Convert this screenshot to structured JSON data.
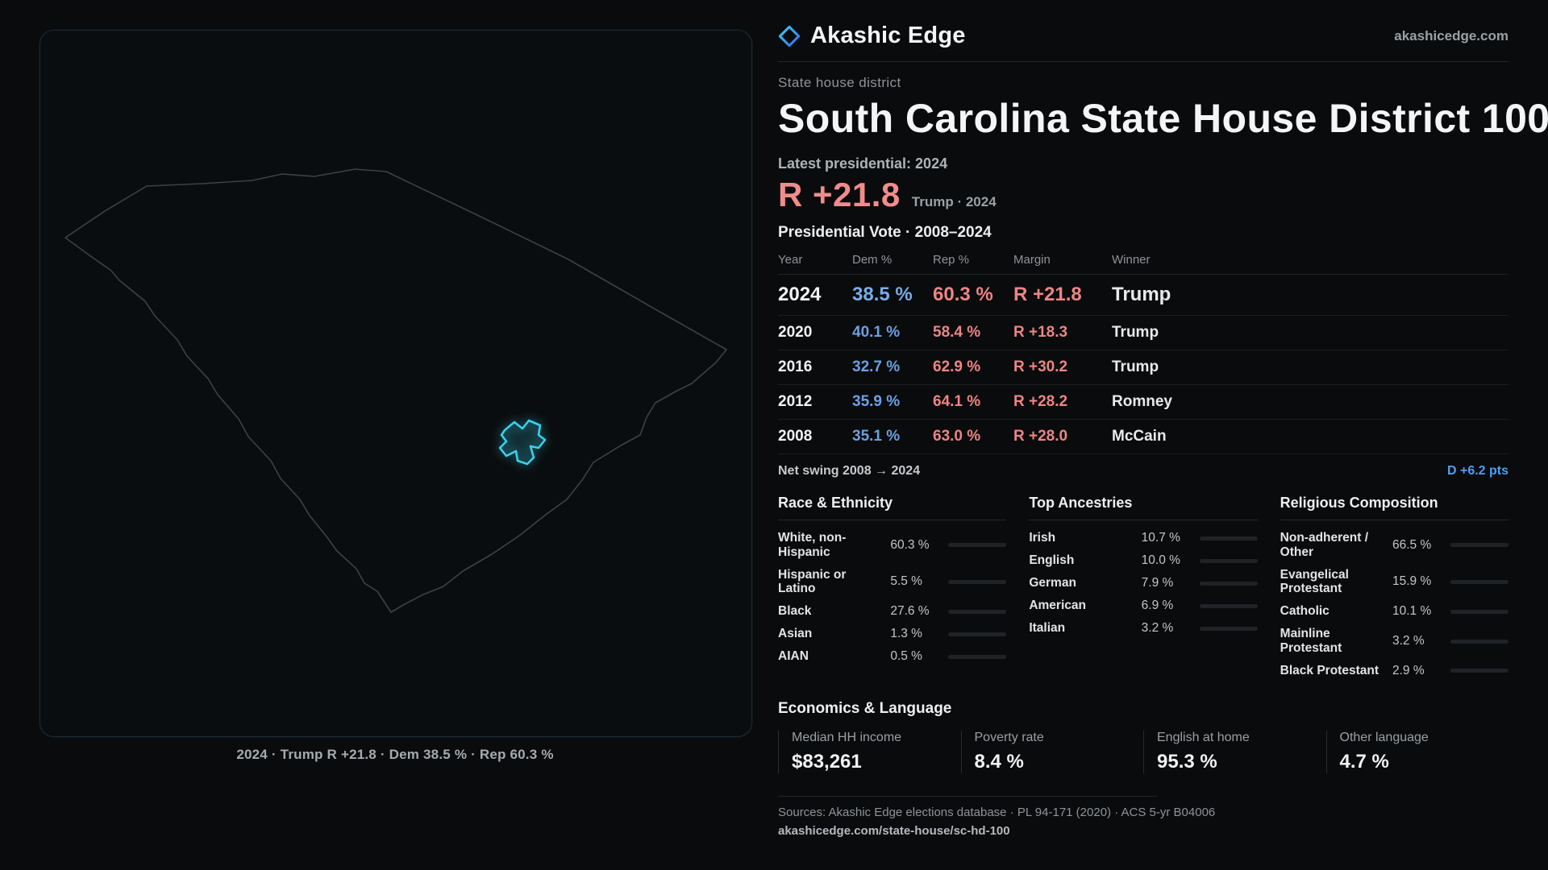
{
  "brand": {
    "name": "Akashic Edge",
    "domain": "akashicedge.com",
    "accent_cyan": "#3ad1ec",
    "accent_blue": "#2f6ef0"
  },
  "map": {
    "caption": "2024 · Trump R +21.8 · Dem 38.5 % · Rep 60.3 %"
  },
  "header": {
    "kicker": "State house district",
    "title": "South Carolina State House District 100",
    "latest_label": "Latest presidential: 2024",
    "margin_value": "R +21.8",
    "margin_sub": "Trump · 2024",
    "rep_color": "#f08c8c",
    "dem_color": "#6ba1e2"
  },
  "table": {
    "title": "Presidential Vote · 2008–2024",
    "columns": [
      "Year",
      "Dem %",
      "Rep %",
      "Margin",
      "Winner"
    ],
    "rows": [
      {
        "year": "2024",
        "dem": "38.5 %",
        "rep": "60.3 %",
        "margin": "R +21.8",
        "winner": "Trump"
      },
      {
        "year": "2020",
        "dem": "40.1 %",
        "rep": "58.4 %",
        "margin": "R +18.3",
        "winner": "Trump"
      },
      {
        "year": "2016",
        "dem": "32.7 %",
        "rep": "62.9 %",
        "margin": "R +30.2",
        "winner": "Trump"
      },
      {
        "year": "2012",
        "dem": "35.9 %",
        "rep": "64.1 %",
        "margin": "R +28.2",
        "winner": "Romney"
      },
      {
        "year": "2008",
        "dem": "35.1 %",
        "rep": "63.0 %",
        "margin": "R +28.0",
        "winner": "McCain"
      }
    ],
    "swing_label": "Net swing 2008 → 2024",
    "swing_value": "D +6.2 pts",
    "swing_color": "#4f9ef2"
  },
  "demographics": {
    "race": {
      "title": "Race & Ethnicity",
      "items": [
        {
          "label": "White, non-Hispanic",
          "value": "60.3 %",
          "pct": 60.3,
          "color": "#b9bec3"
        },
        {
          "label": "Hispanic or Latino",
          "value": "5.5 %",
          "pct": 5.5,
          "color": "#e0a33e"
        },
        {
          "label": "Black",
          "value": "27.6 %",
          "pct": 27.6,
          "color": "#8b7fe8"
        },
        {
          "label": "Asian",
          "value": "1.3 %",
          "pct": 1.3,
          "color": "#6fbf93"
        },
        {
          "label": "AIAN",
          "value": "0.5 %",
          "pct": 0.5,
          "color": "#b9bec3"
        }
      ]
    },
    "ancestry": {
      "title": "Top Ancestries",
      "items": [
        {
          "label": "Irish",
          "value": "10.7 %",
          "pct": 10.7,
          "color": "#b9bec3"
        },
        {
          "label": "English",
          "value": "10.0 %",
          "pct": 10.0,
          "color": "#b9bec3"
        },
        {
          "label": "German",
          "value": "7.9 %",
          "pct": 7.9,
          "color": "#b9bec3"
        },
        {
          "label": "American",
          "value": "6.9 %",
          "pct": 6.9,
          "color": "#b9bec3"
        },
        {
          "label": "Italian",
          "value": "3.2 %",
          "pct": 3.2,
          "color": "#b9bec3"
        }
      ]
    },
    "religion": {
      "title": "Religious Composition",
      "items": [
        {
          "label": "Non-adherent / Other",
          "value": "66.5 %",
          "pct": 66.5,
          "color": "#b9bec3"
        },
        {
          "label": "Evangelical Protestant",
          "value": "15.9 %",
          "pct": 15.9,
          "color": "#e07a7a"
        },
        {
          "label": "Catholic",
          "value": "10.1 %",
          "pct": 10.1,
          "color": "#e0b23e"
        },
        {
          "label": "Mainline Protestant",
          "value": "3.2 %",
          "pct": 3.2,
          "color": "#6ba1e2"
        },
        {
          "label": "Black Protestant",
          "value": "2.9 %",
          "pct": 2.9,
          "color": "#b9bec3"
        }
      ]
    }
  },
  "economics": {
    "title": "Economics & Language",
    "stats": [
      {
        "label": "Median HH income",
        "value": "$83,261"
      },
      {
        "label": "Poverty rate",
        "value": "8.4 %"
      },
      {
        "label": "English at home",
        "value": "95.3 %"
      },
      {
        "label": "Other language",
        "value": "4.7 %"
      }
    ]
  },
  "footer": {
    "sources": "Sources: Akashic Edge elections database · PL 94-171 (2020) · ACS 5-yr B04006",
    "link": "akashicedge.com/state-house/sc-hd-100"
  }
}
